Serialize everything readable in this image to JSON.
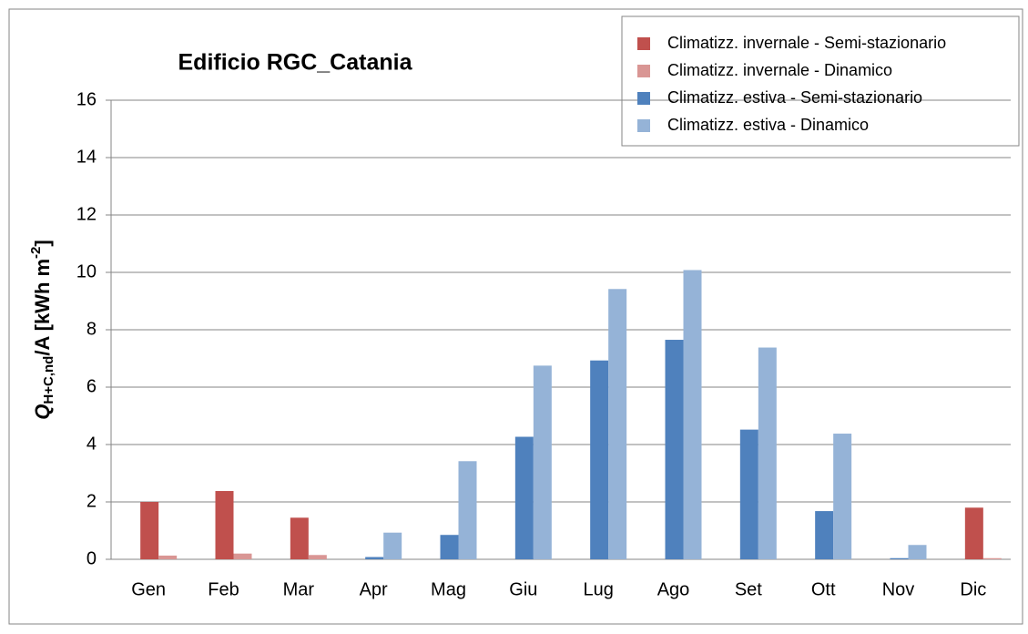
{
  "chart_data": {
    "type": "bar",
    "title": "Edificio RGC_Catania",
    "y_label": [
      "Q",
      "H+C,nd",
      "/A [kWh m",
      "-2",
      "]"
    ],
    "categories": [
      "Gen",
      "Feb",
      "Mar",
      "Apr",
      "Mag",
      "Giu",
      "Lug",
      "Ago",
      "Set",
      "Ott",
      "Nov",
      "Dic"
    ],
    "series": [
      {
        "name": "Climatizz. invernale - Semi-stazionario",
        "color": "#c0504d",
        "values": [
          2.0,
          2.38,
          1.45,
          0,
          0,
          0,
          0,
          0,
          0,
          0,
          0,
          1.8
        ]
      },
      {
        "name": "Climatizz. invernale - Dinamico",
        "color": "#d99694",
        "values": [
          0.13,
          0.2,
          0.15,
          0,
          0,
          0,
          0,
          0,
          0,
          0,
          0,
          0.04
        ]
      },
      {
        "name": "Climatizz. estiva - Semi-stazionario",
        "color": "#4f81bd",
        "values": [
          0,
          0,
          0,
          0.08,
          0.85,
          4.27,
          6.93,
          7.65,
          4.52,
          1.68,
          0.04,
          0
        ]
      },
      {
        "name": "Climatizz. estiva - Dinamico",
        "color": "#95b3d7",
        "values": [
          0,
          0,
          0,
          0.93,
          3.42,
          6.75,
          9.42,
          10.08,
          7.38,
          4.38,
          0.5,
          0
        ]
      }
    ],
    "ylim": [
      0,
      16
    ],
    "yticks": [
      0,
      2,
      4,
      6,
      8,
      10,
      12,
      14,
      16
    ],
    "grid": true,
    "legend": "top-right"
  }
}
